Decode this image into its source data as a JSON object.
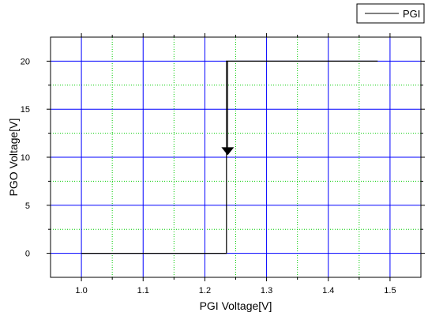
{
  "chart_data": {
    "type": "line",
    "title": "",
    "xlabel": "PGI Voltage[V]",
    "ylabel": "PGO Voltage[V]",
    "xlim": [
      0.95,
      1.55
    ],
    "ylim": [
      -2.5,
      22.5
    ],
    "x_major_ticks": [
      1.0,
      1.1,
      1.2,
      1.3,
      1.4,
      1.5
    ],
    "x_tick_labels": [
      "1.0",
      "1.1",
      "1.2",
      "1.3",
      "1.4",
      "1.5"
    ],
    "x_minor_ticks": [
      1.05,
      1.15,
      1.25,
      1.35,
      1.45
    ],
    "y_major_ticks": [
      0,
      5,
      10,
      15,
      20
    ],
    "y_tick_labels": [
      "0",
      "5",
      "10",
      "15",
      "20"
    ],
    "y_minor_ticks": [
      2.5,
      7.5,
      12.5,
      17.5
    ],
    "grid": true,
    "grid_colors": {
      "major": "#0000ff",
      "minor": "#00cc00"
    },
    "legend": {
      "position": "top-right",
      "entries": [
        "PGI"
      ]
    },
    "series": [
      {
        "name": "PGI",
        "color": "#000000",
        "points": [
          [
            1.0,
            0
          ],
          [
            1.235,
            0
          ],
          [
            1.235,
            20
          ],
          [
            1.24,
            20
          ],
          [
            1.48,
            20
          ]
        ]
      }
    ],
    "annotations": [
      {
        "type": "arrow-down",
        "x": 1.237,
        "y_from": 20,
        "y_to": 10.3
      }
    ]
  }
}
